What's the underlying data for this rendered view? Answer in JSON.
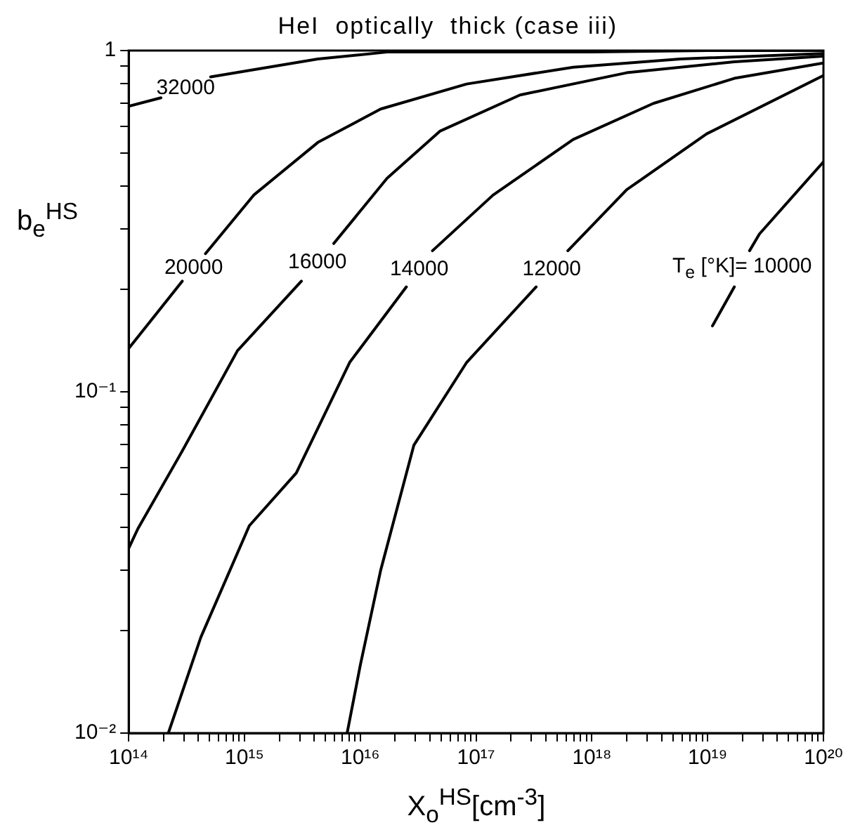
{
  "chart_data": {
    "type": "line",
    "title": "HeI  optically  thick (case iii)",
    "xlabel": "X$_{o}$$^{HS}$[cm$^{-3}$]",
    "ylabel": "b$_{e}$$^{HS}$",
    "log": "xy",
    "legend": false,
    "marker": "none",
    "line_style": "solid",
    "xlim": [
      100000000000000.0,
      1e+20
    ],
    "ylim": [
      0.01,
      1
    ],
    "xticks": [
      {
        "value": 100000000000000.0,
        "label": "10¹⁴"
      },
      {
        "value": 200000000000000.0,
        "label": null
      },
      {
        "value": 300000000000000.0,
        "label": null
      },
      {
        "value": 400000000000000.0,
        "label": null
      },
      {
        "value": 500000000000000.0,
        "label": null
      },
      {
        "value": 600000000000000.0,
        "label": null
      },
      {
        "value": 700000000000000.0,
        "label": null
      },
      {
        "value": 800000000000000.0,
        "label": null
      },
      {
        "value": 900000000000000.0,
        "label": null
      },
      {
        "value": 1000000000000000.0,
        "label": "10¹⁵"
      },
      {
        "value": 2000000000000000.0,
        "label": null
      },
      {
        "value": 3000000000000000.0,
        "label": null
      },
      {
        "value": 4000000000000000.0,
        "label": null
      },
      {
        "value": 5000000000000000.0,
        "label": null
      },
      {
        "value": 6000000000000000.0,
        "label": null
      },
      {
        "value": 7000000000000000.0,
        "label": null
      },
      {
        "value": 8000000000000000.0,
        "label": null
      },
      {
        "value": 9000000000000000.0,
        "label": null
      },
      {
        "value": 1e+16,
        "label": "10¹⁶"
      },
      {
        "value": 2e+16,
        "label": null
      },
      {
        "value": 3e+16,
        "label": null
      },
      {
        "value": 4e+16,
        "label": null
      },
      {
        "value": 5e+16,
        "label": null
      },
      {
        "value": 6e+16,
        "label": null
      },
      {
        "value": 7e+16,
        "label": null
      },
      {
        "value": 8e+16,
        "label": null
      },
      {
        "value": 9e+16,
        "label": null
      },
      {
        "value": 1e+17,
        "label": "10¹⁷"
      },
      {
        "value": 2e+17,
        "label": null
      },
      {
        "value": 3e+17,
        "label": null
      },
      {
        "value": 4e+17,
        "label": null
      },
      {
        "value": 5e+17,
        "label": null
      },
      {
        "value": 6e+17,
        "label": null
      },
      {
        "value": 7e+17,
        "label": null
      },
      {
        "value": 8e+17,
        "label": null
      },
      {
        "value": 9e+17,
        "label": null
      },
      {
        "value": 1e+18,
        "label": "10¹⁸"
      },
      {
        "value": 2e+18,
        "label": null
      },
      {
        "value": 3e+18,
        "label": null
      },
      {
        "value": 4e+18,
        "label": null
      },
      {
        "value": 5e+18,
        "label": null
      },
      {
        "value": 6e+18,
        "label": null
      },
      {
        "value": 7e+18,
        "label": null
      },
      {
        "value": 8e+18,
        "label": null
      },
      {
        "value": 9e+18,
        "label": null
      },
      {
        "value": 1e+19,
        "label": "10¹⁹"
      },
      {
        "value": 2e+19,
        "label": null
      },
      {
        "value": 3e+19,
        "label": null
      },
      {
        "value": 4e+19,
        "label": null
      },
      {
        "value": 5e+19,
        "label": null
      },
      {
        "value": 6e+19,
        "label": null
      },
      {
        "value": 7e+19,
        "label": null
      },
      {
        "value": 8e+19,
        "label": null
      },
      {
        "value": 9e+19,
        "label": null
      },
      {
        "value": 1e+20,
        "label": "10²⁰"
      }
    ],
    "yticks": [
      {
        "value": 0.01,
        "label": "10⁻²"
      },
      {
        "value": 0.02,
        "label": null
      },
      {
        "value": 0.03,
        "label": null
      },
      {
        "value": 0.04,
        "label": null
      },
      {
        "value": 0.05,
        "label": null
      },
      {
        "value": 0.06,
        "label": null
      },
      {
        "value": 0.07,
        "label": null
      },
      {
        "value": 0.08,
        "label": null
      },
      {
        "value": 0.09,
        "label": null
      },
      {
        "value": 0.1,
        "label": "10⁻¹"
      },
      {
        "value": 0.2,
        "label": null
      },
      {
        "value": 0.3,
        "label": null
      },
      {
        "value": 0.4,
        "label": null
      },
      {
        "value": 0.5,
        "label": null
      },
      {
        "value": 0.6,
        "label": null
      },
      {
        "value": 0.7,
        "label": null
      },
      {
        "value": 0.8,
        "label": null
      },
      {
        "value": 0.9,
        "label": null
      },
      {
        "value": 1,
        "label": "1"
      }
    ],
    "series": [
      {
        "name": "32000",
        "color": "#000000",
        "x": [
          100000000000000.0,
          190000000000000.0,
          300000000000000.0,
          510000000000000.0,
          4300000000000000.0,
          1.7e+16,
          1e+17,
          1e+18,
          1e+19,
          1e+20
        ],
        "values": [
          0.687,
          0.727,
          null,
          0.837,
          0.945,
          0.99,
          0.99,
          0.99,
          1,
          1
        ]
      },
      {
        "name": "20000",
        "color": "#000000",
        "x": [
          100000000000000.0,
          290000000000000.0,
          360000000000000.0,
          460000000000000.0,
          1200000000000000.0,
          4300000000000000.0,
          1.5e+16,
          8.3e+16,
          6.9e+17,
          5.8e+18,
          1e+20
        ],
        "values": [
          0.134,
          0.211,
          null,
          0.254,
          0.377,
          0.538,
          0.674,
          0.798,
          0.894,
          0.945,
          0.98
        ]
      },
      {
        "name": "16000",
        "color": "#000000",
        "x": [
          100000000000000.0,
          120000000000000.0,
          290000000000000.0,
          870000000000000.0,
          3100000000000000.0,
          4200000000000000.0,
          5900000000000000.0,
          1.7e+16,
          4.9e+16,
          2.4e+17,
          2e+18,
          1.7e+19,
          1e+20
        ],
        "values": [
          0.0348,
          0.0397,
          0.0671,
          0.132,
          0.211,
          null,
          0.272,
          0.422,
          0.581,
          0.741,
          0.861,
          0.927,
          0.963
        ]
      },
      {
        "name": "14000",
        "color": "#000000",
        "x": [
          220000000000000.0,
          420000000000000.0,
          1100000000000000.0,
          2800000000000000.0,
          8100000000000000.0,
          2.5e+16,
          3.3e+16,
          4.2e+16,
          1.4e+17,
          6.9e+17,
          3.4e+18,
          1.7e+19,
          1e+20
        ],
        "values": [
          0.01,
          0.0191,
          0.0405,
          0.0578,
          0.122,
          0.203,
          null,
          0.259,
          0.377,
          0.549,
          0.7,
          0.829,
          0.919
        ]
      },
      {
        "name": "12000",
        "color": "#000000",
        "x": [
          7700000000000000.0,
          1e+16,
          1.5e+16,
          2.9e+16,
          8.3e+16,
          3.3e+17,
          4.5e+17,
          6.2e+17,
          2e+18,
          9.8e+18,
          1e+20
        ],
        "values": [
          0.01,
          0.0158,
          0.03,
          0.0697,
          0.122,
          0.203,
          null,
          0.259,
          0.391,
          0.57,
          0.845
        ]
      },
      {
        "name": "T$_{e}$ [°K]= 10000",
        "color": "#000000",
        "x": [
          1.1e+19,
          1.7e+19,
          2e+19,
          2.3e+19,
          2.8e+19,
          1e+20
        ],
        "values": [
          0.156,
          0.203,
          null,
          0.259,
          0.29,
          0.472
        ]
      }
    ]
  }
}
